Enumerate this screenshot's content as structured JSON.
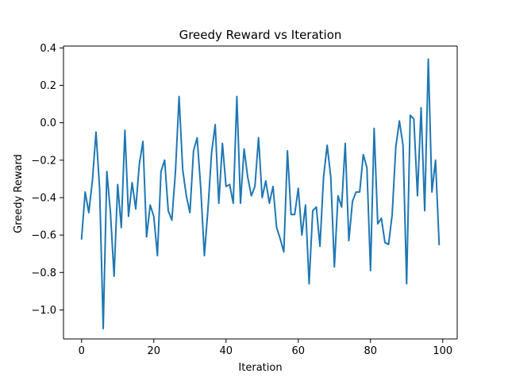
{
  "chart_data": {
    "type": "line",
    "title": "Greedy Reward vs Iteration",
    "xlabel": "Iteration",
    "ylabel": "Greedy Reward",
    "xlim": [
      -5,
      104
    ],
    "ylim": [
      -1.155,
      0.41
    ],
    "xticks": [
      0,
      20,
      40,
      60,
      80,
      100
    ],
    "xtick_labels": [
      "0",
      "20",
      "40",
      "60",
      "80",
      "100"
    ],
    "yticks": [
      0.4,
      0.2,
      0.0,
      -0.2,
      -0.4,
      -0.6,
      -0.8,
      -1.0
    ],
    "ytick_labels": [
      "0.4",
      "0.2",
      "0.0",
      "−0.2",
      "−0.4",
      "−0.6",
      "−0.8",
      "−1.0"
    ],
    "grid": false,
    "legend": false,
    "series": [
      {
        "color": "#1f77b4",
        "x": [
          0,
          1,
          2,
          3,
          4,
          5,
          6,
          7,
          8,
          9,
          10,
          11,
          12,
          13,
          14,
          15,
          16,
          17,
          18,
          19,
          20,
          21,
          22,
          23,
          24,
          25,
          26,
          27,
          28,
          29,
          30,
          31,
          32,
          33,
          34,
          35,
          36,
          37,
          38,
          39,
          40,
          41,
          42,
          43,
          44,
          45,
          46,
          47,
          48,
          49,
          50,
          51,
          52,
          53,
          54,
          55,
          56,
          57,
          58,
          59,
          60,
          61,
          62,
          63,
          64,
          65,
          66,
          67,
          68,
          69,
          70,
          71,
          72,
          73,
          74,
          75,
          76,
          77,
          78,
          79,
          80,
          81,
          82,
          83,
          84,
          85,
          86,
          87,
          88,
          89,
          90,
          91,
          92,
          93,
          94,
          95,
          96,
          97,
          98,
          99
        ],
        "values": [
          -0.62,
          -0.37,
          -0.48,
          -0.31,
          -0.05,
          -0.35,
          -1.1,
          -0.26,
          -0.48,
          -0.82,
          -0.33,
          -0.56,
          -0.04,
          -0.5,
          -0.32,
          -0.46,
          -0.22,
          -0.1,
          -0.61,
          -0.44,
          -0.5,
          -0.71,
          -0.26,
          -0.2,
          -0.47,
          -0.52,
          -0.26,
          0.14,
          -0.25,
          -0.39,
          -0.48,
          -0.15,
          -0.08,
          -0.35,
          -0.71,
          -0.46,
          -0.16,
          -0.01,
          -0.43,
          -0.11,
          -0.34,
          -0.33,
          -0.43,
          0.14,
          -0.43,
          -0.14,
          -0.29,
          -0.39,
          -0.34,
          -0.08,
          -0.4,
          -0.31,
          -0.43,
          -0.34,
          -0.56,
          -0.62,
          -0.69,
          -0.15,
          -0.49,
          -0.49,
          -0.35,
          -0.6,
          -0.44,
          -0.86,
          -0.47,
          -0.45,
          -0.66,
          -0.29,
          -0.12,
          -0.29,
          -0.77,
          -0.39,
          -0.45,
          -0.11,
          -0.63,
          -0.42,
          -0.37,
          -0.37,
          -0.17,
          -0.24,
          -0.79,
          -0.03,
          -0.54,
          -0.51,
          -0.64,
          -0.65,
          -0.49,
          -0.13,
          0.01,
          -0.12,
          -0.86,
          0.04,
          0.02,
          -0.39,
          0.08,
          -0.47,
          0.34,
          -0.37,
          -0.2,
          -0.65
        ]
      }
    ]
  }
}
